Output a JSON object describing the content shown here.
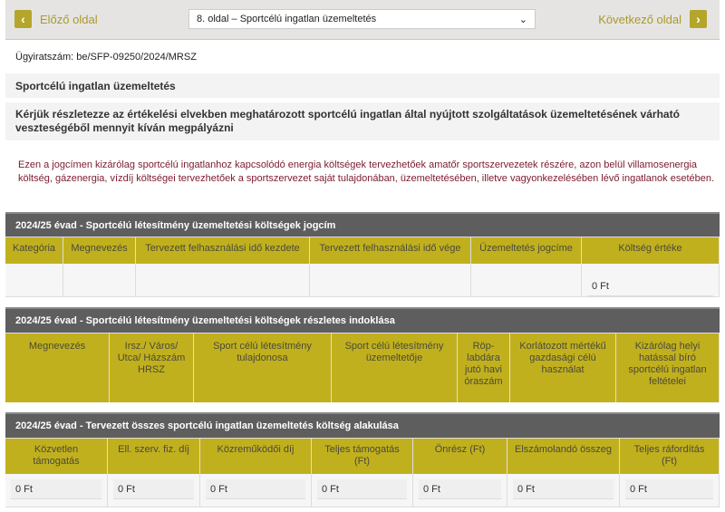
{
  "nav": {
    "prev": "Előző oldal",
    "next": "Következő oldal",
    "page_select": "8. oldal – Sportcélú ingatlan üzemeltetés"
  },
  "case_number": "Ügyiratszám: be/SFP-09250/2024/MRSZ",
  "section_title": "Sportcélú ingatlan üzemeltetés",
  "question": "Kérjük részletezze az értékelési elvekben meghatározott sportcélú ingatlan által nyújtott szolgáltatások üzemeltetésének várható veszteségéből mennyit kíván megpályázni",
  "notice": "Ezen a jogcímen kizárólag sportcélú ingatlanhoz kapcsolódó energia költségek tervezhetőek amatőr sportszervezetek részére, azon belül villamosenergia költség, gázenergia, vízdíj költségei tervezhetőek a sportszervezet saját tulajdonában, üzemeltetésében, illetve vagyonkezelésében lévő ingatlanok esetében.",
  "table1": {
    "title": "2024/25 évad - Sportcélú létesítmény üzemeltetési költségek jogcím",
    "headers": [
      "Kategória",
      "Megnevezés",
      "Tervezett felhasználási idő kezdete",
      "Tervezett felhasználási idő vége",
      "Üzemeltetés jogcíme",
      "Költség értéke"
    ],
    "row": [
      "",
      "",
      "",
      "",
      "",
      "0 Ft"
    ]
  },
  "table2": {
    "title": "2024/25 évad - Sportcélú létesítmény üzemeltetési költségek részletes indoklása",
    "headers": [
      "Megnevezés",
      "Irsz./ Város/ Utca/ Házszám HRSZ",
      "Sport célú létesítmény tulajdonosa",
      "Sport célú létesítmény üzemeltetője",
      "Röp-labdára jutó havi óraszám",
      "Korlátozott mértékű gazdasági célú használat",
      "Kizárólag helyi hatással bíró sportcélú ingatlan feltételei"
    ]
  },
  "table3": {
    "title": "2024/25 évad - Tervezett összes sportcélú ingatlan üzemeltetés költség alakulása",
    "headers": [
      "Közvetlen támogatás",
      "Ell. szerv. fiz. díj",
      "Közreműködői díj",
      "Teljes támogatás (Ft)",
      "Önrész (Ft)",
      "Elszámolandó összeg",
      "Teljes ráfordítás (Ft)"
    ],
    "row": [
      "0 Ft",
      "0 Ft",
      "0 Ft",
      "0 Ft",
      "0 Ft",
      "0 Ft",
      "0 Ft"
    ]
  },
  "colors": {
    "accent": "#c1b01e",
    "bar": "#5e5e5e",
    "notice": "#7b1a2c"
  }
}
